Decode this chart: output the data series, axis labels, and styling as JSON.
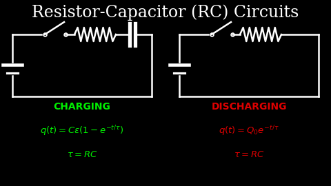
{
  "background_color": "#000000",
  "title": "Resistor-Capacitor (RC) Circuits",
  "title_color": "#ffffff",
  "title_fontsize": 17,
  "charging_label": "CHARGING",
  "charging_color": "#00ee00",
  "discharging_label": "DISCHARGING",
  "discharging_color": "#dd0000",
  "circuit_color": "#ffffff",
  "lw": 1.8
}
